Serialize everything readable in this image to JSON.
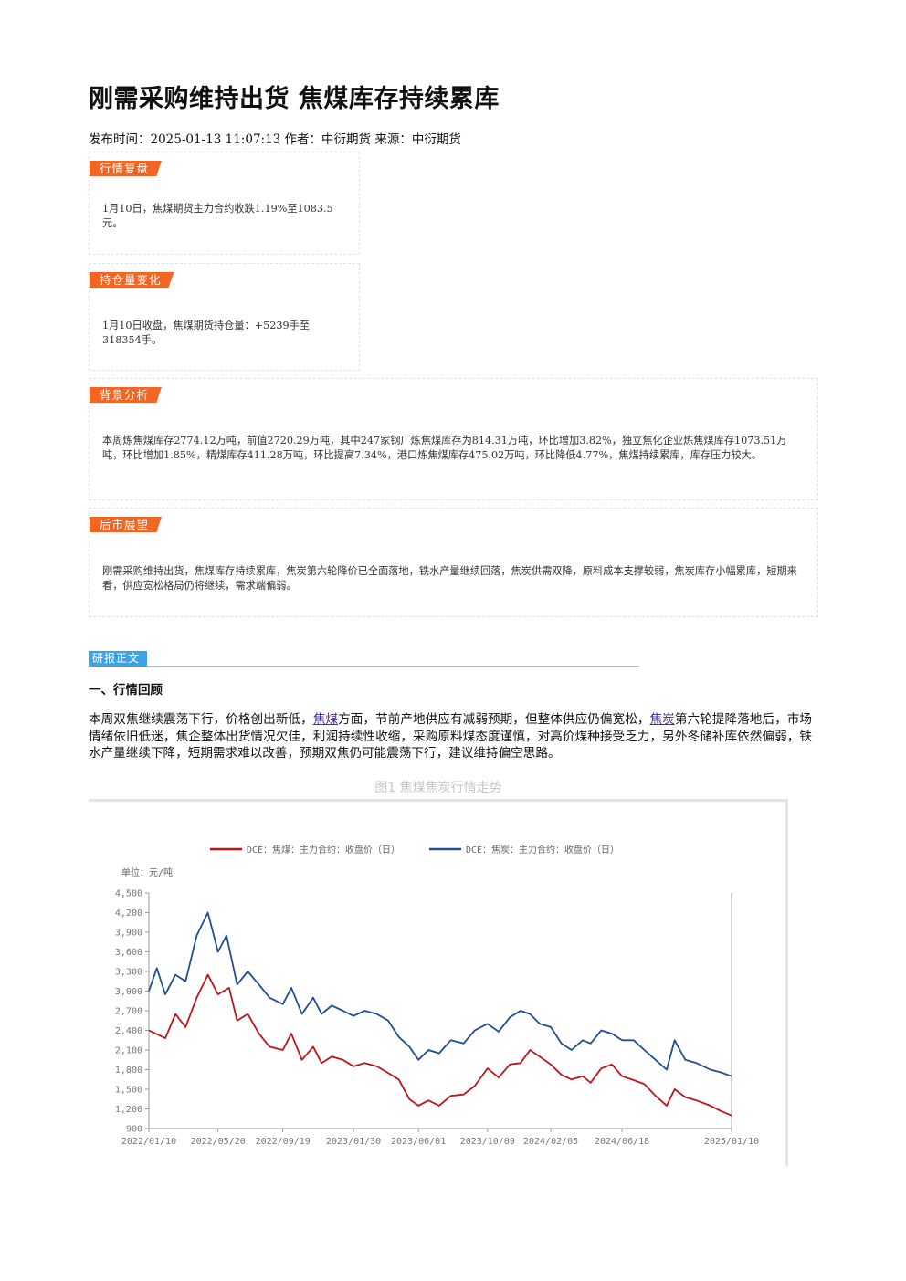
{
  "article": {
    "title": "刚需采购维持出货 焦煤库存持续累库",
    "meta": "发布时间：2025-01-13 11:07:13 作者：中衍期货 来源：中衍期货"
  },
  "boxes": {
    "market_review": {
      "tag": "行情复盘",
      "text": "1月10日，焦煤期货主力合约收跌1.19%至1083.5元。"
    },
    "position_change": {
      "tag": "持仓量变化",
      "text": "1月10日收盘，焦煤期货持仓量：+5239手至318354手。"
    },
    "background": {
      "tag": "背景分析",
      "text": "本周炼焦煤库存2774.12万吨，前值2720.29万吨，其中247家钢厂炼焦煤库存为814.31万吨，环比增加3.82%，独立焦化企业炼焦煤库存1073.51万吨，环比增加1.85%，精煤库存411.28万吨，环比提高7.34%，港口炼焦煤库存475.02万吨，环比降低4.77%，焦煤持续累库，库存压力较大。"
    },
    "outlook": {
      "tag": "后市展望",
      "text": "刚需采购维持出货，焦煤库存持续累库，焦炭第六轮降价已全面落地，铁水产量继续回落，焦炭供需双降，原料成本支撑较弱，焦炭库存小幅累库，短期来看，供应宽松格局仍将继续，需求端偏弱。"
    }
  },
  "research": {
    "tag": "研报正文",
    "section1": "一、行情回顾",
    "para_part1": "本周双焦继续震荡下行，价格创出新低，",
    "link1": "焦煤",
    "para_part2": "方面，节前产地供应有减弱预期，但整体供应仍偏宽松，",
    "link2": "焦炭",
    "para_part3": "第六轮提降落地后，市场情绪依旧低迷，焦企整体出货情况欠佳，利润持续性收缩，采购原料煤态度谨慎，对高价煤种接受乏力，另外冬储补库依然偏弱，铁水产量继续下降，短期需求难以改善，预期双焦仍可能震荡下行，建议维持偏空思路。"
  },
  "figure": {
    "caption": "图1 焦煤焦炭行情走势"
  },
  "chart_data": {
    "type": "line",
    "title": "",
    "unit_label": "单位：元/吨",
    "ylim": [
      900,
      4500
    ],
    "yticks": [
      "4,500",
      "4,200",
      "3,900",
      "3,600",
      "3,300",
      "3,000",
      "2,700",
      "2,400",
      "2,100",
      "1,800",
      "1,500",
      "1,200",
      "900"
    ],
    "ytick_values": [
      4500,
      4200,
      3900,
      3600,
      3300,
      3000,
      2700,
      2400,
      2100,
      1800,
      1500,
      1200,
      900
    ],
    "xticks": [
      "2022/01/10",
      "2022/05/20",
      "2022/09/19",
      "2023/01/30",
      "2023/06/01",
      "2023/10/09",
      "2024/02/05",
      "2024/06/18",
      "2025/01/10"
    ],
    "legend_position": "top",
    "colors": {
      "coking_coal": "#c0141b",
      "coke": "#1f4e91"
    },
    "series": [
      {
        "name": "DCE：焦煤：主力合约：收盘价（日）",
        "color": "#c0141b",
        "points": [
          [
            "2022/01/10",
            2400
          ],
          [
            "2022/02/10",
            2280
          ],
          [
            "2022/03/01",
            2650
          ],
          [
            "2022/03/20",
            2450
          ],
          [
            "2022/04/10",
            2900
          ],
          [
            "2022/05/01",
            3250
          ],
          [
            "2022/05/20",
            2950
          ],
          [
            "2022/06/10",
            3050
          ],
          [
            "2022/06/25",
            2550
          ],
          [
            "2022/07/15",
            2650
          ],
          [
            "2022/08/05",
            2350
          ],
          [
            "2022/08/25",
            2150
          ],
          [
            "2022/09/19",
            2100
          ],
          [
            "2022/10/05",
            2350
          ],
          [
            "2022/10/25",
            1950
          ],
          [
            "2022/11/15",
            2150
          ],
          [
            "2022/12/01",
            1900
          ],
          [
            "2022/12/20",
            2000
          ],
          [
            "2023/01/10",
            1950
          ],
          [
            "2023/01/30",
            1850
          ],
          [
            "2023/02/20",
            1900
          ],
          [
            "2023/03/15",
            1850
          ],
          [
            "2023/04/05",
            1750
          ],
          [
            "2023/04/25",
            1650
          ],
          [
            "2023/05/15",
            1350
          ],
          [
            "2023/06/01",
            1250
          ],
          [
            "2023/06/20",
            1330
          ],
          [
            "2023/07/10",
            1250
          ],
          [
            "2023/08/01",
            1400
          ],
          [
            "2023/08/25",
            1420
          ],
          [
            "2023/09/15",
            1550
          ],
          [
            "2023/10/09",
            1820
          ],
          [
            "2023/10/30",
            1680
          ],
          [
            "2023/11/20",
            1880
          ],
          [
            "2023/12/10",
            1900
          ],
          [
            "2023/12/28",
            2100
          ],
          [
            "2024/01/15",
            2000
          ],
          [
            "2024/02/05",
            1880
          ],
          [
            "2024/02/25",
            1720
          ],
          [
            "2024/03/15",
            1650
          ],
          [
            "2024/04/05",
            1700
          ],
          [
            "2024/04/20",
            1600
          ],
          [
            "2024/05/10",
            1820
          ],
          [
            "2024/05/30",
            1880
          ],
          [
            "2024/06/18",
            1700
          ],
          [
            "2024/07/10",
            1640
          ],
          [
            "2024/07/30",
            1580
          ],
          [
            "2024/08/20",
            1400
          ],
          [
            "2024/09/10",
            1250
          ],
          [
            "2024/09/25",
            1500
          ],
          [
            "2024/10/15",
            1380
          ],
          [
            "2024/11/05",
            1330
          ],
          [
            "2024/12/01",
            1250
          ],
          [
            "2024/12/20",
            1170
          ],
          [
            "2025/01/10",
            1100
          ]
        ]
      },
      {
        "name": "DCE：焦炭：主力合约：收盘价（日）",
        "color": "#1f4e91",
        "points": [
          [
            "2022/01/10",
            3000
          ],
          [
            "2022/01/25",
            3350
          ],
          [
            "2022/02/10",
            2950
          ],
          [
            "2022/03/01",
            3250
          ],
          [
            "2022/03/20",
            3150
          ],
          [
            "2022/04/10",
            3850
          ],
          [
            "2022/05/01",
            4200
          ],
          [
            "2022/05/20",
            3600
          ],
          [
            "2022/06/05",
            3850
          ],
          [
            "2022/06/25",
            3100
          ],
          [
            "2022/07/15",
            3300
          ],
          [
            "2022/08/05",
            3100
          ],
          [
            "2022/08/25",
            2900
          ],
          [
            "2022/09/19",
            2800
          ],
          [
            "2022/10/05",
            3050
          ],
          [
            "2022/10/25",
            2650
          ],
          [
            "2022/11/15",
            2900
          ],
          [
            "2022/12/01",
            2650
          ],
          [
            "2022/12/20",
            2780
          ],
          [
            "2023/01/10",
            2700
          ],
          [
            "2023/01/30",
            2620
          ],
          [
            "2023/02/20",
            2700
          ],
          [
            "2023/03/15",
            2650
          ],
          [
            "2023/04/05",
            2550
          ],
          [
            "2023/04/25",
            2300
          ],
          [
            "2023/05/15",
            2150
          ],
          [
            "2023/06/01",
            1950
          ],
          [
            "2023/06/20",
            2100
          ],
          [
            "2023/07/10",
            2050
          ],
          [
            "2023/08/01",
            2250
          ],
          [
            "2023/08/25",
            2200
          ],
          [
            "2023/09/15",
            2400
          ],
          [
            "2023/10/09",
            2500
          ],
          [
            "2023/10/30",
            2380
          ],
          [
            "2023/11/20",
            2600
          ],
          [
            "2023/12/10",
            2700
          ],
          [
            "2023/12/28",
            2650
          ],
          [
            "2024/01/15",
            2500
          ],
          [
            "2024/02/05",
            2450
          ],
          [
            "2024/02/25",
            2200
          ],
          [
            "2024/03/15",
            2100
          ],
          [
            "2024/04/05",
            2250
          ],
          [
            "2024/04/20",
            2200
          ],
          [
            "2024/05/10",
            2400
          ],
          [
            "2024/05/30",
            2350
          ],
          [
            "2024/06/18",
            2250
          ],
          [
            "2024/07/10",
            2250
          ],
          [
            "2024/07/30",
            2100
          ],
          [
            "2024/08/20",
            1950
          ],
          [
            "2024/09/10",
            1800
          ],
          [
            "2024/09/25",
            2250
          ],
          [
            "2024/10/15",
            1950
          ],
          [
            "2024/11/05",
            1900
          ],
          [
            "2024/12/01",
            1800
          ],
          [
            "2024/12/20",
            1760
          ],
          [
            "2025/01/10",
            1700
          ]
        ]
      }
    ]
  }
}
